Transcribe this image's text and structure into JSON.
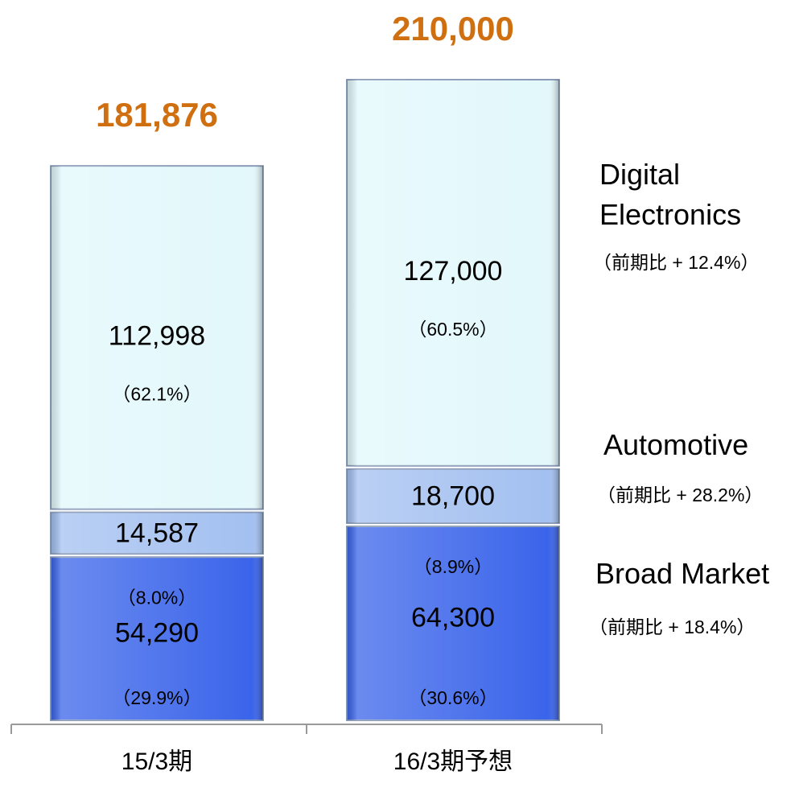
{
  "chart_data": {
    "type": "stacked_bar",
    "categories": [
      "15/3期",
      "16/3期予想"
    ],
    "totals": [
      181876,
      210000
    ],
    "total_labels": [
      "181,876",
      "210,000"
    ],
    "ylim": [
      0,
      210000
    ],
    "series": [
      {
        "name": "Broad Market",
        "color": "#3a64ea",
        "values": [
          54290,
          64300
        ],
        "value_labels": [
          "54,290",
          "64,300"
        ],
        "share_labels": [
          "（29.9%）",
          "（30.6%）"
        ],
        "growth_label": "（前期比 + 18.4%）"
      },
      {
        "name": "Automotive",
        "color": "#a3c0f0",
        "values": [
          14587,
          18700
        ],
        "value_labels": [
          "14,587",
          "18,700"
        ],
        "share_labels": [
          "（8.0%）",
          "（8.9%）"
        ],
        "growth_label": "（前期比 + 28.2%）"
      },
      {
        "name": "Digital Electronics",
        "color": "#e2f8fb",
        "values": [
          112998,
          127000
        ],
        "value_labels": [
          "112,998",
          "127,000"
        ],
        "share_labels": [
          "（62.1%）",
          "（60.5%）"
        ],
        "growth_label": "（前期比 + 12.4%）"
      }
    ]
  }
}
